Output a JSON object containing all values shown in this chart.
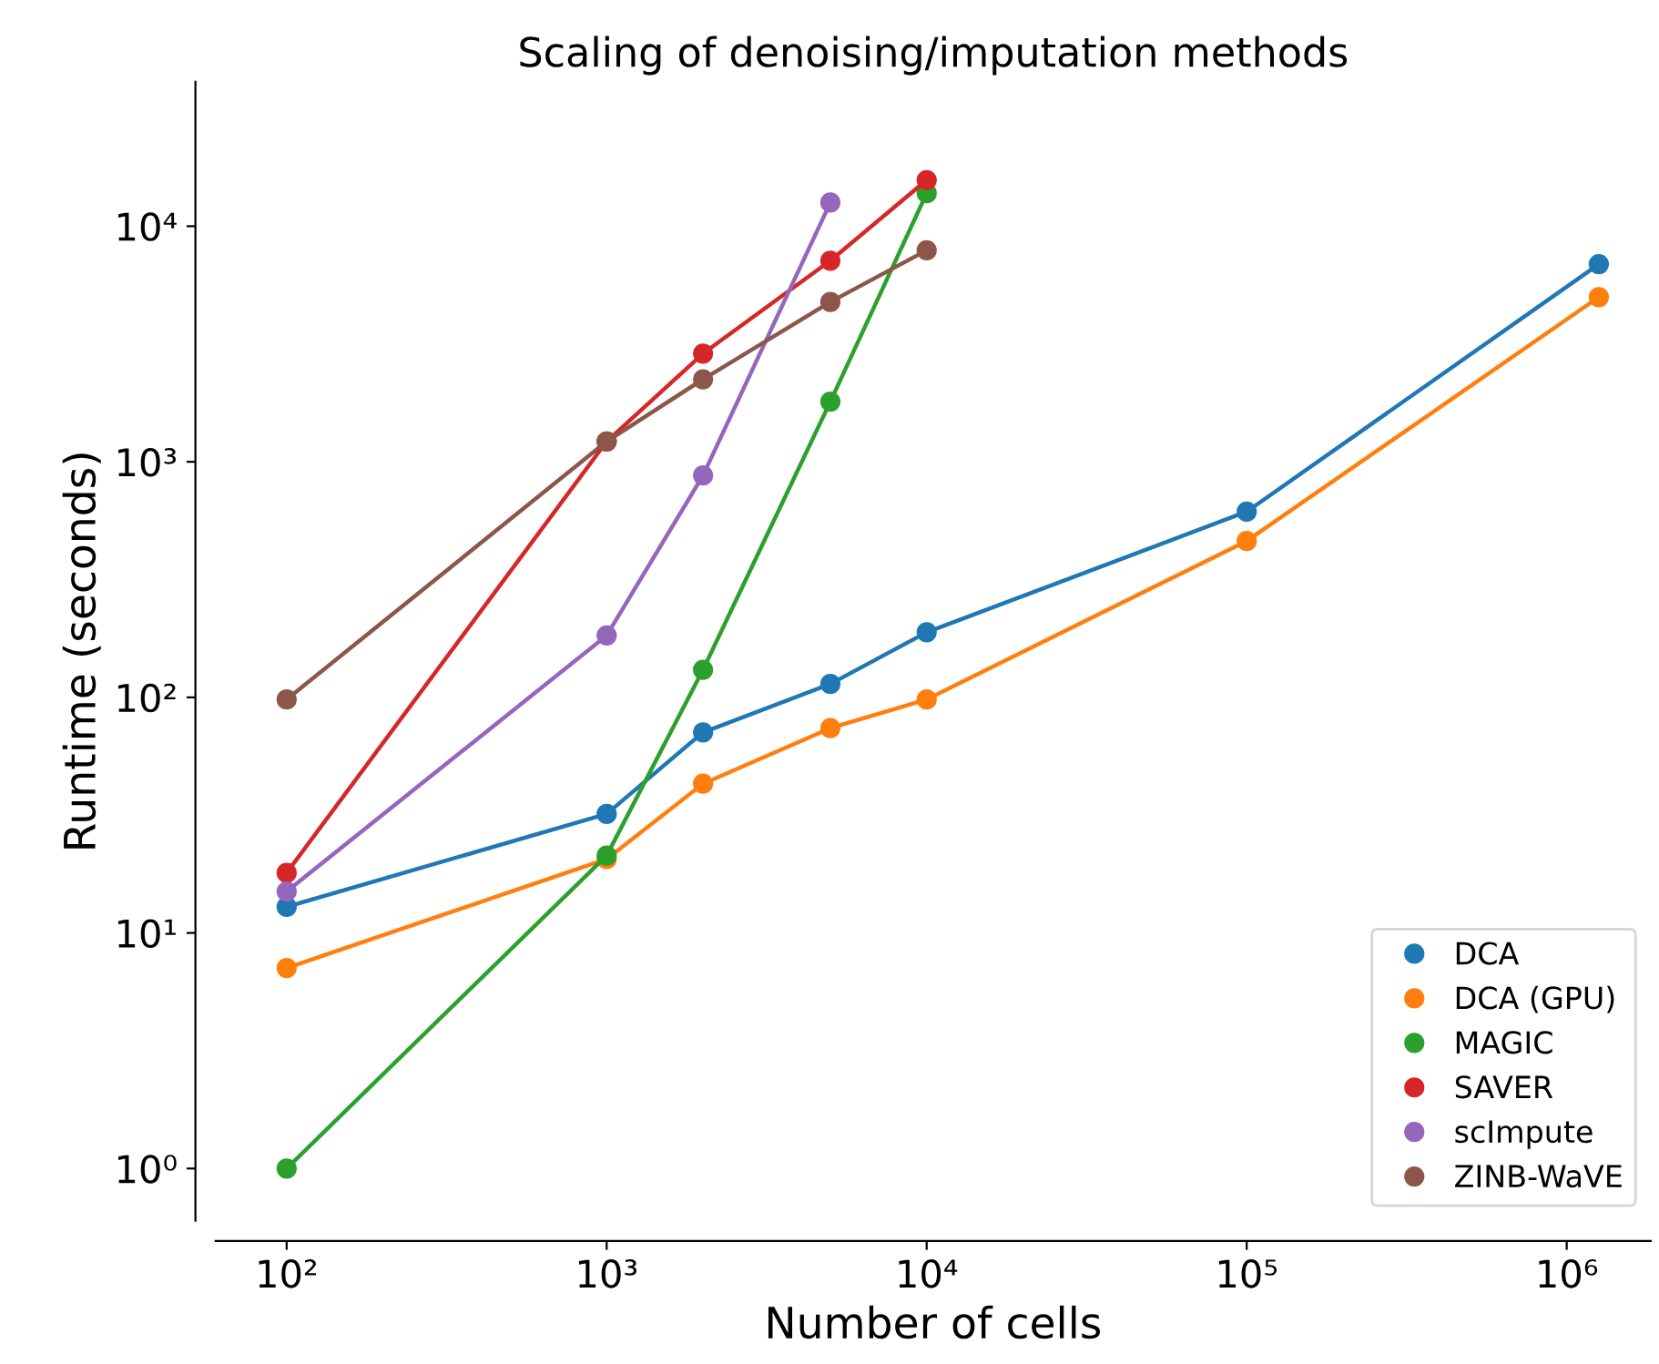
{
  "chart_data": {
    "type": "line",
    "title": "Scaling of denoising/imputation methods",
    "xlabel": "Number of cells",
    "ylabel": "Runtime (seconds)",
    "log": "xy",
    "marker": "circle",
    "legend": "bottom right",
    "grid": false,
    "xlim": [
      60,
      1830000
    ],
    "ylim": [
      0.6,
      41000
    ],
    "xticks": [
      {
        "value": 100,
        "label": "10²"
      },
      {
        "value": 1000,
        "label": "10³"
      },
      {
        "value": 10000,
        "label": "10⁴"
      },
      {
        "value": 100000,
        "label": "10⁵"
      },
      {
        "value": 1000000,
        "label": "10⁶"
      }
    ],
    "yticks": [
      {
        "value": 1,
        "label": "10⁰"
      },
      {
        "value": 10,
        "label": "10¹"
      },
      {
        "value": 100,
        "label": "10²"
      },
      {
        "value": 1000,
        "label": "10³"
      },
      {
        "value": 10000,
        "label": "10⁴"
      }
    ],
    "series": [
      {
        "name": "DCA",
        "color": "#1f77b4",
        "x": [
          100,
          1000,
          2000,
          5000,
          10000,
          100000,
          1260000
        ],
        "values": [
          12.9,
          32,
          71,
          114,
          189,
          614,
          6900
        ]
      },
      {
        "name": "DCA (GPU)",
        "color": "#ff7f0e",
        "x": [
          100,
          1000,
          2000,
          5000,
          10000,
          100000,
          1260000
        ],
        "values": [
          7.1,
          20.6,
          43,
          74,
          98,
          461,
          5000
        ]
      },
      {
        "name": "MAGIC",
        "color": "#2ca02c",
        "x": [
          100,
          1000,
          2000,
          5000,
          10000
        ],
        "values": [
          1.0,
          21.3,
          131,
          1800,
          13800
        ]
      },
      {
        "name": "SAVER",
        "color": "#d62728",
        "x": [
          100,
          1000,
          2000,
          5000,
          10000
        ],
        "values": [
          18,
          1220,
          2880,
          7140,
          15700
        ]
      },
      {
        "name": "scImpute",
        "color": "#9467bd",
        "x": [
          100,
          1000,
          2000,
          5000
        ],
        "values": [
          15,
          183,
          875,
          12600
        ]
      },
      {
        "name": "ZINB-WaVE",
        "color": "#8c564b",
        "x": [
          100,
          1000,
          2000,
          5000,
          10000
        ],
        "values": [
          98,
          1220,
          2240,
          4770,
          7900
        ]
      }
    ]
  }
}
